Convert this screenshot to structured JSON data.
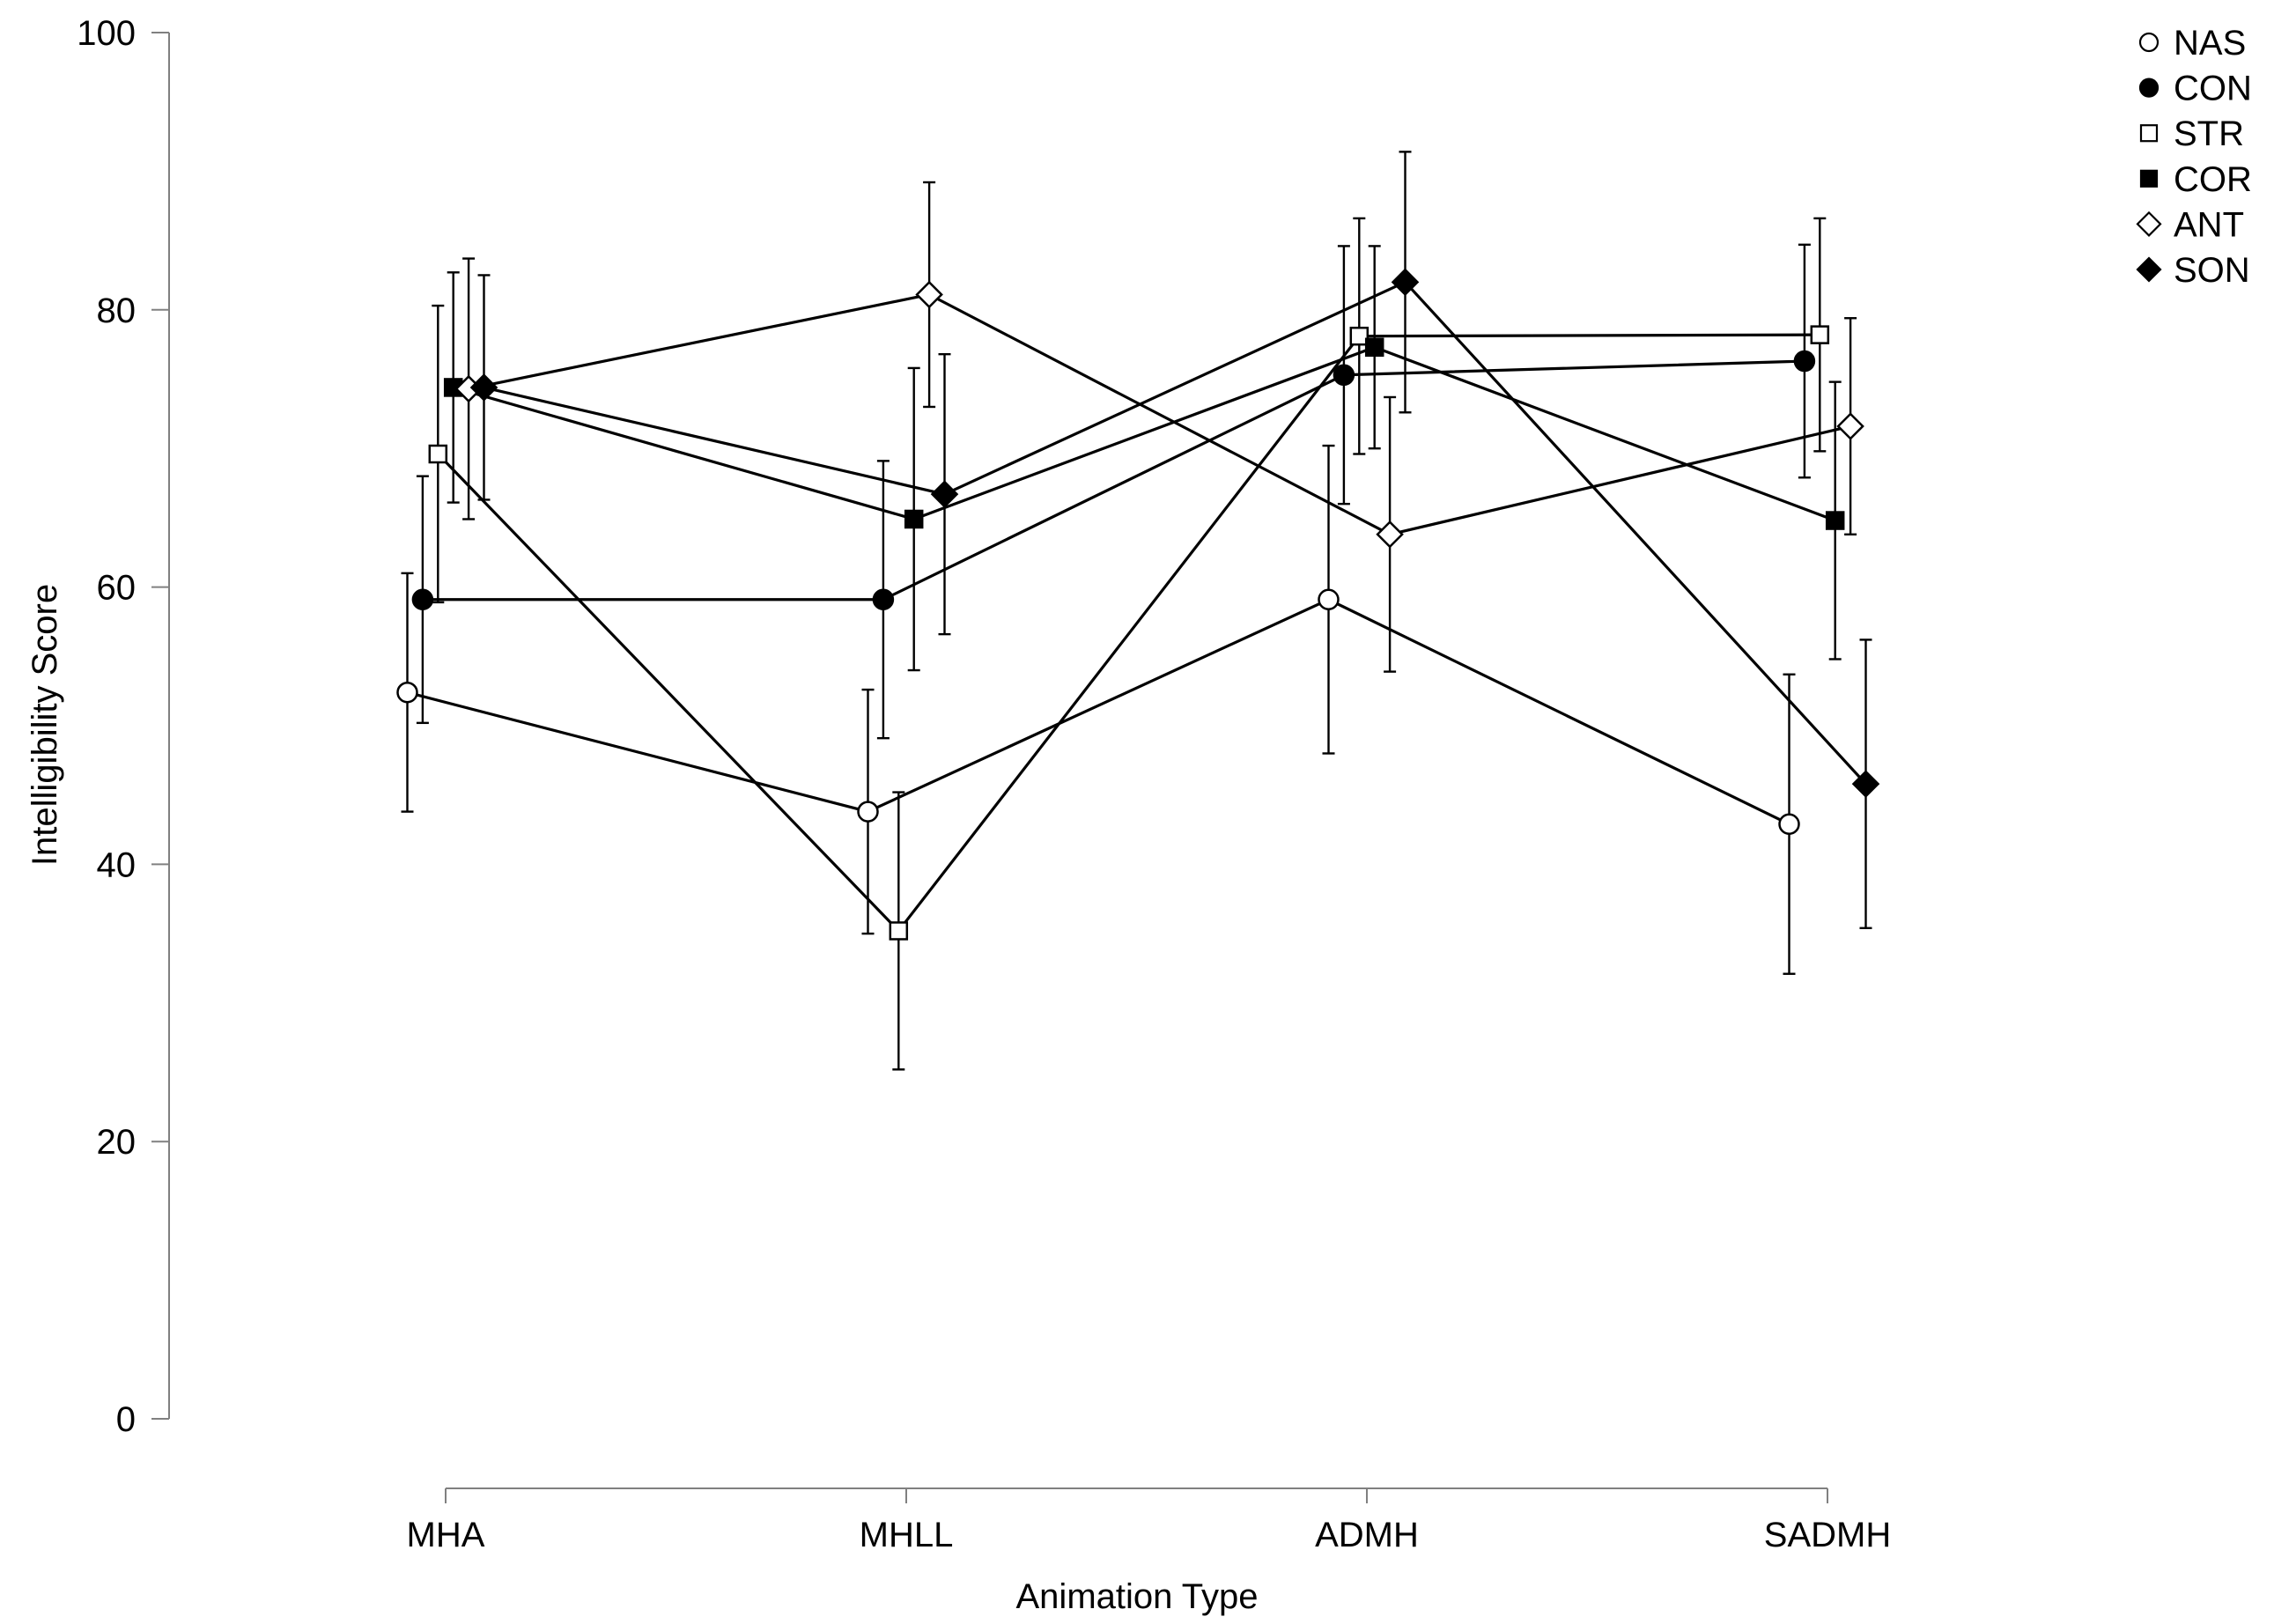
{
  "chart_data": {
    "type": "line",
    "xlabel": "Animation Type",
    "ylabel": "Intelligibility Score",
    "categories": [
      "MHA",
      "MHLL",
      "ADMH",
      "SADMH"
    ],
    "ylim": [
      0,
      100
    ],
    "yticks": [
      0,
      20,
      40,
      60,
      80,
      100
    ],
    "grid": false,
    "legend_position": "top-right",
    "error_bars": true,
    "colors": {
      "line": "#000000",
      "axis": "#808080",
      "open_marker_fill": "#ffffff",
      "filled_marker_fill": "#000000"
    },
    "series": [
      {
        "name": "NAS",
        "marker": "circle",
        "filled": false,
        "values": [
          52.4,
          43.8,
          59.1,
          42.9
        ],
        "error": [
          8.6,
          8.8,
          11.1,
          10.8
        ]
      },
      {
        "name": "CON",
        "marker": "circle",
        "filled": true,
        "values": [
          59.1,
          59.1,
          75.3,
          76.3
        ],
        "error": [
          8.9,
          10.0,
          9.3,
          8.4
        ]
      },
      {
        "name": "STR",
        "marker": "square",
        "filled": false,
        "values": [
          69.6,
          35.2,
          78.1,
          78.2
        ],
        "error": [
          10.7,
          10.0,
          8.5,
          8.4
        ]
      },
      {
        "name": "COR",
        "marker": "square",
        "filled": true,
        "values": [
          74.4,
          64.9,
          77.3,
          64.8
        ],
        "error": [
          8.3,
          10.9,
          7.3,
          10.0
        ]
      },
      {
        "name": "ANT",
        "marker": "diamond",
        "filled": false,
        "values": [
          74.3,
          81.1,
          63.8,
          71.6
        ],
        "error": [
          9.4,
          8.1,
          9.9,
          7.8
        ]
      },
      {
        "name": "SON",
        "marker": "diamond",
        "filled": true,
        "values": [
          74.4,
          66.7,
          82.0,
          45.8
        ],
        "error": [
          8.1,
          10.1,
          9.4,
          10.4
        ]
      }
    ]
  }
}
